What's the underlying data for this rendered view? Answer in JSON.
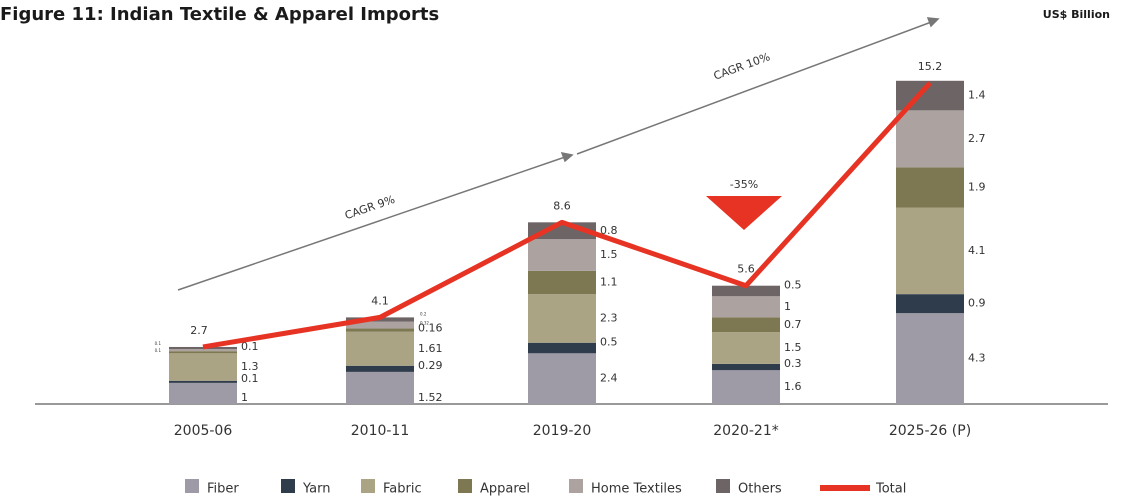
{
  "chart_data": {
    "type": "bar",
    "stacked": true,
    "title": "Figure 11: Indian Textile & Apparel Imports",
    "unit_label": "US$ Billion",
    "categories": [
      "2005-06",
      "2010-11",
      "2019-20",
      "2020-21*",
      "2025-26 (P)"
    ],
    "series": [
      {
        "name": "Fiber",
        "color": "#9e9aa6",
        "values": [
          1,
          1.52,
          2.4,
          1.6,
          4.3
        ]
      },
      {
        "name": "Yarn",
        "color": "#2f3c4c",
        "values": [
          0.1,
          0.29,
          0.5,
          0.3,
          0.9
        ]
      },
      {
        "name": "Fabric",
        "color": "#aaa384",
        "values": [
          1.3,
          1.61,
          2.3,
          1.5,
          4.1
        ]
      },
      {
        "name": "Apparel",
        "color": "#7d7852",
        "values": [
          0.1,
          0.16,
          1.1,
          0.7,
          1.9
        ]
      },
      {
        "name": "Home Textiles",
        "color": "#aca2a0",
        "values": [
          0.1,
          0.32,
          1.5,
          1,
          2.7
        ]
      },
      {
        "name": "Others",
        "color": "#6d6466",
        "values": [
          0.1,
          0.2,
          0.8,
          0.5,
          1.4
        ]
      },
      {
        "name": "Total",
        "type": "line",
        "color": "#e63323",
        "values": [
          2.7,
          4.1,
          8.6,
          5.6,
          15.2
        ]
      }
    ],
    "ylim": [
      0,
      16
    ],
    "annotations": [
      "CAGR 9%",
      "CAGR 10%",
      "-35%"
    ]
  }
}
